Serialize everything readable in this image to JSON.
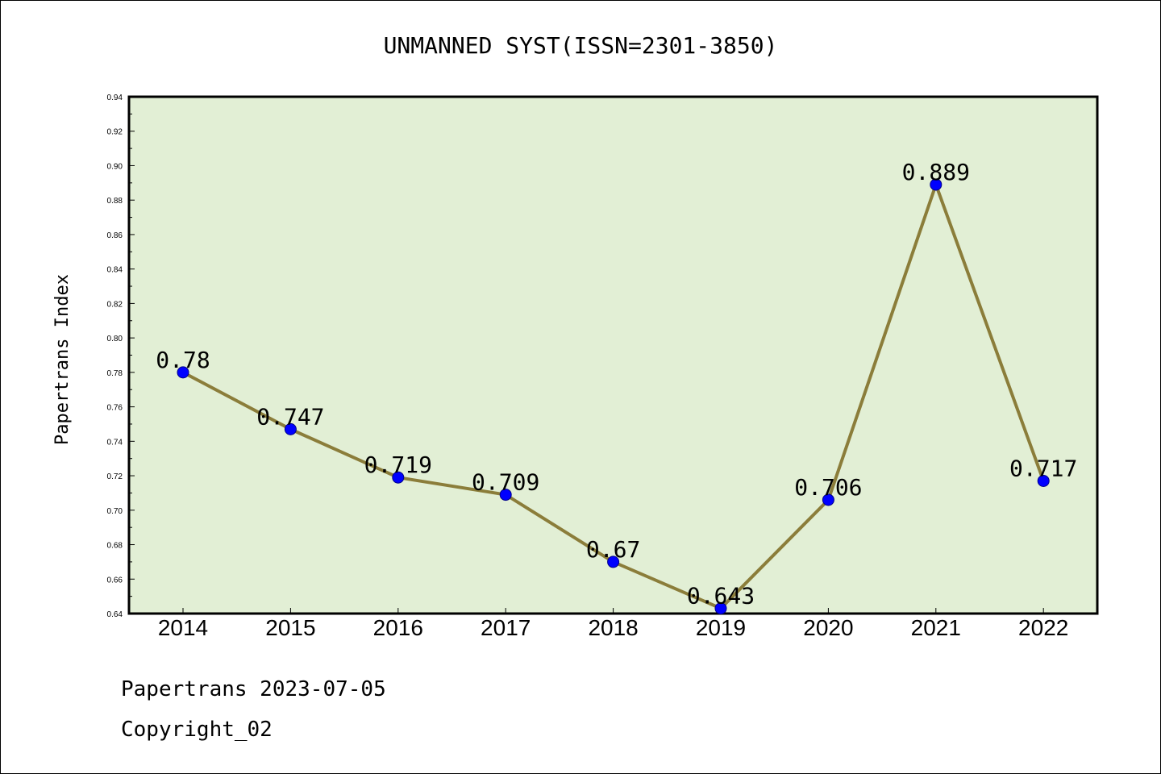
{
  "chart_data": {
    "type": "line",
    "title": "UNMANNED SYST(ISSN=2301-3850)",
    "xlabel": "",
    "ylabel": "Papertrans Index",
    "categories": [
      "2014",
      "2015",
      "2016",
      "2017",
      "2018",
      "2019",
      "2020",
      "2021",
      "2022"
    ],
    "series": [
      {
        "values": [
          0.78,
          0.747,
          0.719,
          0.709,
          0.67,
          0.643,
          0.706,
          0.889,
          0.717
        ],
        "labels": [
          "0.78",
          "0.747",
          "0.719",
          "0.709",
          "0.67",
          "0.643",
          "0.706",
          "0.889",
          "0.717"
        ]
      }
    ],
    "ylim": [
      0.64,
      0.94
    ],
    "yticks": [
      "0.64",
      "0.66",
      "0.68",
      "0.70",
      "0.72",
      "0.74",
      "0.76",
      "0.78",
      "0.80",
      "0.82",
      "0.84",
      "0.86",
      "0.88",
      "0.90",
      "0.92",
      "0.94"
    ],
    "grid": false,
    "legend": "none",
    "colors": {
      "plot_background": "#e2efd5",
      "line": "#8b7d3a",
      "marker": "#0000ff"
    }
  },
  "footer": {
    "line1": "Papertrans 2023-07-05",
    "line2": "Copyright_02"
  }
}
